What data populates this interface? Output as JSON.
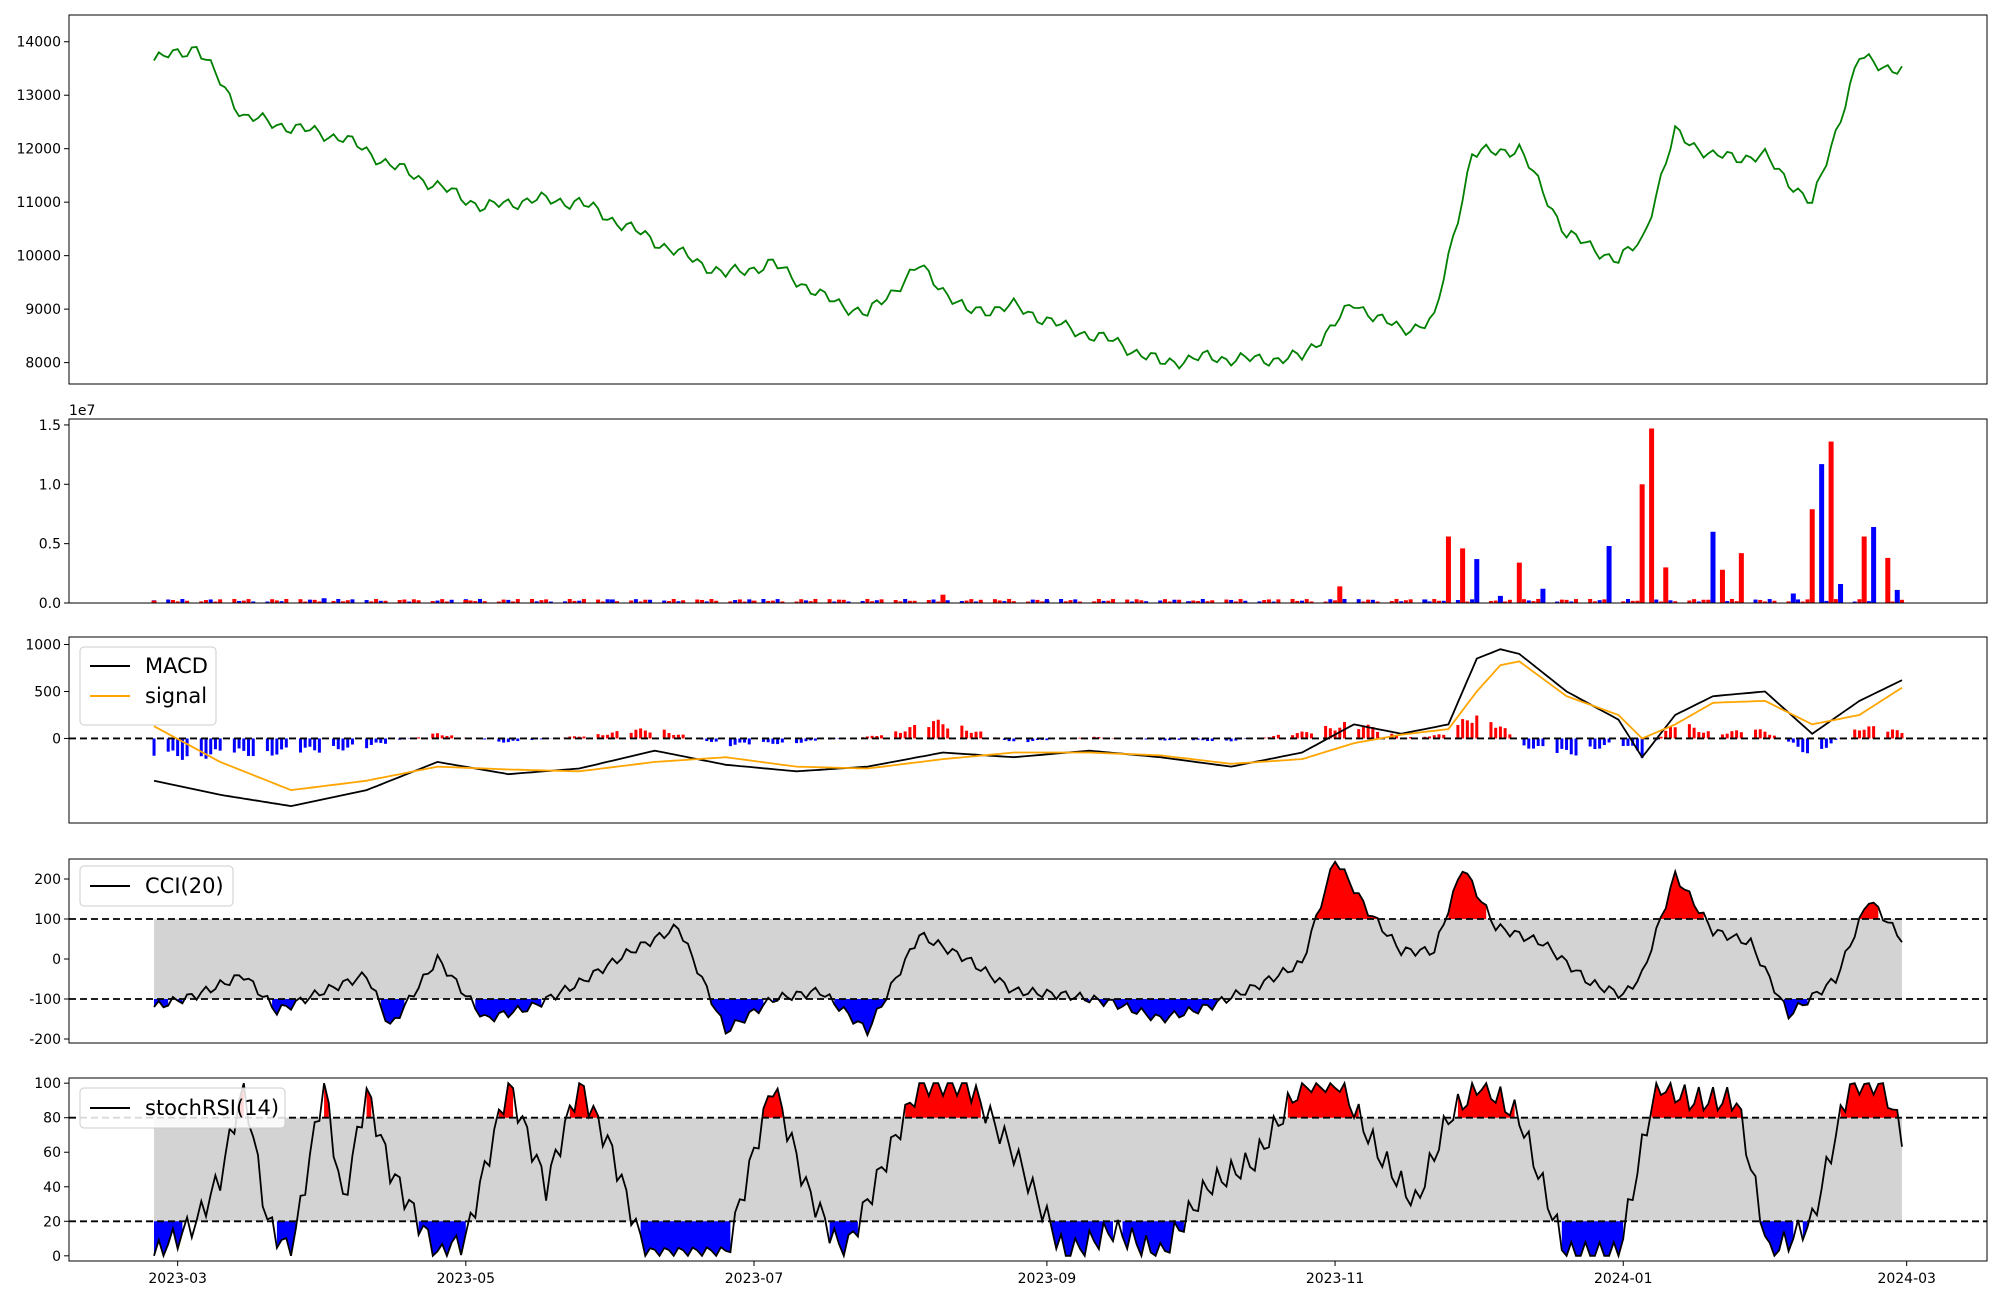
{
  "colors": {
    "price": "#008000",
    "up": "#ff0000",
    "down": "#0000ff",
    "macd": "#000000",
    "signal": "#ffa500",
    "band": "#d3d3d3",
    "line": "#000000"
  },
  "x_axis": {
    "start": "2023-02-24",
    "end": "2024-02-29",
    "xlim": [
      "2023-02-06",
      "2024-03-18"
    ],
    "ticks": [
      "2023-03",
      "2023-05",
      "2023-07",
      "2023-09",
      "2023-11",
      "2024-01",
      "2024-03"
    ]
  },
  "chart_data": [
    {
      "type": "line",
      "name": "price",
      "ylim": [
        7600,
        14500
      ],
      "yticks": [
        8000,
        9000,
        10000,
        11000,
        12000,
        13000,
        14000
      ],
      "x": [
        "2023-02-24",
        "2023-03-05",
        "2023-03-15",
        "2023-03-25",
        "2023-04-05",
        "2023-04-15",
        "2023-04-25",
        "2023-05-05",
        "2023-05-15",
        "2023-05-25",
        "2023-06-05",
        "2023-06-15",
        "2023-06-25",
        "2023-07-05",
        "2023-07-15",
        "2023-07-25",
        "2023-08-05",
        "2023-08-15",
        "2023-08-25",
        "2023-09-05",
        "2023-09-15",
        "2023-09-25",
        "2023-10-05",
        "2023-10-15",
        "2023-10-25",
        "2023-11-05",
        "2023-11-15",
        "2023-11-22",
        "2023-11-30",
        "2023-12-10",
        "2023-12-20",
        "2023-12-31",
        "2024-01-05",
        "2024-01-12",
        "2024-01-20",
        "2024-01-31",
        "2024-02-10",
        "2024-02-20",
        "2024-02-29"
      ],
      "values": [
        13650,
        13900,
        12600,
        12400,
        12200,
        11700,
        11300,
        10900,
        11050,
        11000,
        10500,
        10050,
        9650,
        9850,
        9250,
        8900,
        9800,
        8950,
        9050,
        8650,
        8400,
        8000,
        8100,
        8050,
        8100,
        9100,
        8600,
        8800,
        11900,
        12000,
        10400,
        9900,
        10300,
        12300,
        11850,
        11850,
        10950,
        13700,
        13450
      ]
    },
    {
      "type": "bar",
      "name": "volume",
      "multiplier_label": "1e7",
      "ylim": [
        0,
        15500000.0
      ],
      "yticks": [
        0,
        5000000,
        10000000,
        15000000
      ],
      "ytick_labels": [
        "0.0",
        "0.5",
        "1.0",
        "1.5"
      ],
      "x": [
        "2023-02-24",
        "2023-04-01",
        "2023-05-01",
        "2023-06-01",
        "2023-07-01",
        "2023-08-10",
        "2023-09-01",
        "2023-10-01",
        "2023-11-02",
        "2023-11-20",
        "2023-11-25",
        "2023-11-28",
        "2023-12-01",
        "2023-12-06",
        "2023-12-10",
        "2023-12-15",
        "2023-12-29",
        "2024-01-05",
        "2024-01-07",
        "2024-01-10",
        "2024-01-20",
        "2024-01-22",
        "2024-01-26",
        "2024-02-06",
        "2024-02-10",
        "2024-02-12",
        "2024-02-14",
        "2024-02-16",
        "2024-02-21",
        "2024-02-23",
        "2024-02-26",
        "2024-02-28"
      ],
      "values": [
        200000,
        400000,
        250000,
        300000,
        200000,
        700000,
        200000,
        150000,
        1400000,
        300000,
        5600000,
        4600000,
        3700000,
        600000,
        3400000,
        1200000,
        4800000,
        10000000,
        14700000,
        3000000,
        6000000,
        2800000,
        4200000,
        800000,
        7900000,
        11700000,
        13600000,
        1600000,
        5600000,
        6400000,
        3800000,
        1100000
      ],
      "direction": [
        "up",
        "down",
        "up",
        "down",
        "up",
        "up",
        "down",
        "down",
        "up",
        "down",
        "up",
        "up",
        "down",
        "down",
        "up",
        "down",
        "down",
        "up",
        "up",
        "up",
        "down",
        "up",
        "up",
        "down",
        "up",
        "down",
        "up",
        "down",
        "up",
        "down",
        "up",
        "down"
      ]
    },
    {
      "type": "line",
      "name": "macd",
      "ylim": [
        -900,
        1080
      ],
      "yticks": [
        0,
        500,
        1000
      ],
      "legend": [
        "MACD",
        "signal"
      ],
      "legend_position": "top-left",
      "reference_lines": [
        0
      ],
      "x": [
        "2023-02-24",
        "2023-03-10",
        "2023-03-25",
        "2023-04-10",
        "2023-04-25",
        "2023-05-10",
        "2023-05-25",
        "2023-06-10",
        "2023-06-25",
        "2023-07-10",
        "2023-07-25",
        "2023-08-10",
        "2023-08-25",
        "2023-09-10",
        "2023-09-25",
        "2023-10-10",
        "2023-10-25",
        "2023-11-05",
        "2023-11-15",
        "2023-11-25",
        "2023-12-01",
        "2023-12-06",
        "2023-12-10",
        "2023-12-20",
        "2023-12-31",
        "2024-01-05",
        "2024-01-12",
        "2024-01-20",
        "2024-01-31",
        "2024-02-10",
        "2024-02-20",
        "2024-02-29"
      ],
      "series": [
        {
          "name": "MACD",
          "values": [
            -450,
            -600,
            -720,
            -550,
            -250,
            -380,
            -320,
            -130,
            -280,
            -350,
            -300,
            -150,
            -200,
            -130,
            -200,
            -300,
            -150,
            150,
            50,
            150,
            850,
            950,
            900,
            500,
            200,
            -200,
            250,
            450,
            500,
            50,
            400,
            620
          ]
        },
        {
          "name": "signal",
          "values": [
            130,
            -250,
            -550,
            -450,
            -300,
            -330,
            -350,
            -250,
            -200,
            -300,
            -320,
            -220,
            -150,
            -150,
            -180,
            -270,
            -220,
            -50,
            40,
            100,
            500,
            780,
            820,
            450,
            250,
            0,
            150,
            380,
            400,
            150,
            250,
            540
          ]
        },
        {
          "name": "histogram",
          "values": [
            -230,
            -200,
            -170,
            -100,
            60,
            -50,
            30,
            120,
            -80,
            -50,
            20,
            210,
            -50,
            20,
            -20,
            -30,
            70,
            200,
            10,
            50,
            350,
            170,
            -80,
            -200,
            -50,
            -200,
            190,
            70,
            100,
            -200,
            150,
            80
          ]
        }
      ]
    },
    {
      "type": "line",
      "name": "cci",
      "ylim": [
        -210,
        250
      ],
      "yticks": [
        -200,
        -100,
        0,
        100,
        200
      ],
      "legend": [
        "CCI(20)"
      ],
      "legend_position": "top-left",
      "reference_lines": [
        -100,
        100
      ],
      "x": [
        "2023-02-24",
        "2023-03-05",
        "2023-03-15",
        "2023-03-22",
        "2023-04-01",
        "2023-04-10",
        "2023-04-15",
        "2023-04-25",
        "2023-05-05",
        "2023-05-15",
        "2023-05-25",
        "2023-06-05",
        "2023-06-15",
        "2023-06-25",
        "2023-07-05",
        "2023-07-15",
        "2023-07-25",
        "2023-08-05",
        "2023-08-15",
        "2023-08-25",
        "2023-09-05",
        "2023-09-15",
        "2023-09-25",
        "2023-10-05",
        "2023-10-15",
        "2023-10-25",
        "2023-11-01",
        "2023-11-08",
        "2023-11-15",
        "2023-11-22",
        "2023-11-28",
        "2023-12-05",
        "2023-12-15",
        "2023-12-25",
        "2024-01-01",
        "2024-01-05",
        "2024-01-12",
        "2024-01-20",
        "2024-01-28",
        "2024-02-05",
        "2024-02-15",
        "2024-02-22",
        "2024-02-29"
      ],
      "values": [
        -120,
        -90,
        -40,
        -130,
        -80,
        -40,
        -170,
        0,
        -150,
        -120,
        -60,
        20,
        80,
        -180,
        -100,
        -80,
        -180,
        60,
        0,
        -80,
        -90,
        -110,
        -150,
        -120,
        -70,
        -10,
        250,
        120,
        20,
        20,
        230,
        80,
        40,
        -60,
        -90,
        -40,
        210,
        70,
        40,
        -140,
        -50,
        150,
        50
      ]
    },
    {
      "type": "line",
      "name": "stochrsi",
      "ylim": [
        -3,
        103
      ],
      "yticks": [
        0,
        20,
        40,
        60,
        80,
        100
      ],
      "legend": [
        "stochRSI(14)"
      ],
      "legend_position": "top-left",
      "reference_lines": [
        20,
        80
      ],
      "x": [
        "2023-02-24",
        "2023-03-05",
        "2023-03-10",
        "2023-03-15",
        "2023-03-20",
        "2023-03-25",
        "2023-04-01",
        "2023-04-05",
        "2023-04-10",
        "2023-04-15",
        "2023-04-25",
        "2023-05-01",
        "2023-05-10",
        "2023-05-18",
        "2023-05-25",
        "2023-06-01",
        "2023-06-08",
        "2023-06-15",
        "2023-06-25",
        "2023-07-05",
        "2023-07-12",
        "2023-07-20",
        "2023-07-28",
        "2023-08-05",
        "2023-08-15",
        "2023-08-25",
        "2023-09-05",
        "2023-09-15",
        "2023-09-25",
        "2023-10-05",
        "2023-10-15",
        "2023-10-25",
        "2023-11-02",
        "2023-11-10",
        "2023-11-18",
        "2023-11-25",
        "2023-12-02",
        "2023-12-10",
        "2023-12-20",
        "2023-12-31",
        "2024-01-08",
        "2024-01-15",
        "2024-01-25",
        "2024-02-01",
        "2024-02-10",
        "2024-02-18",
        "2024-02-25",
        "2024-02-29"
      ],
      "values": [
        0,
        20,
        45,
        100,
        20,
        0,
        100,
        30,
        95,
        50,
        0,
        10,
        100,
        40,
        100,
        60,
        0,
        0,
        0,
        100,
        40,
        0,
        50,
        100,
        100,
        60,
        0,
        15,
        0,
        40,
        55,
        100,
        100,
        60,
        30,
        80,
        100,
        80,
        0,
        0,
        100,
        90,
        90,
        0,
        20,
        100,
        100,
        70
      ]
    }
  ]
}
